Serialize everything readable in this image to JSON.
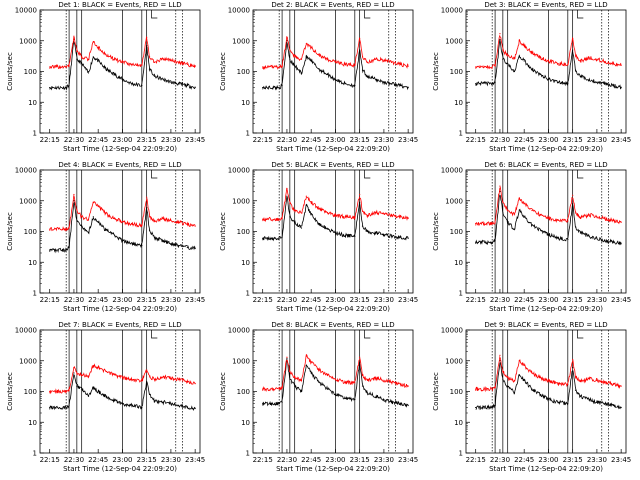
{
  "figure": {
    "ylabel": "Counts/sec",
    "xlabel": "Start Time (12-Sep-04 22:09:20)",
    "xticks": [
      "22:15",
      "22:30",
      "22:45",
      "23:00",
      "23:15",
      "23:30",
      "23:45"
    ],
    "yticks": [
      "1",
      "10",
      "100",
      "1000",
      "10000"
    ]
  },
  "colors": {
    "events": "#000000",
    "lld": "#ff0000",
    "axes": "#000000",
    "background": "#ffffff"
  },
  "chart_data": [
    {
      "type": "line",
      "title": "Det 1: BLACK = Events, RED = LLD",
      "xlabel": "Start Time (12-Sep-04 22:09:20)",
      "ylabel": "Counts/sec",
      "x": [
        22.25,
        22.42,
        22.45,
        22.5,
        22.53,
        22.58,
        22.65,
        22.7,
        22.75,
        22.83,
        22.92,
        23.0,
        23.1,
        23.2,
        23.25,
        23.28,
        23.33,
        23.42,
        23.5,
        23.58,
        23.67,
        23.75
      ],
      "series": [
        {
          "name": "BLACK = Events",
          "values": [
            30,
            30,
            35,
            1100,
            250,
            180,
            90,
            300,
            220,
            120,
            80,
            55,
            40,
            35,
            700,
            120,
            70,
            55,
            45,
            40,
            35,
            30
          ]
        },
        {
          "name": "RED = LLD",
          "values": [
            140,
            140,
            150,
            1400,
            450,
            300,
            250,
            900,
            600,
            350,
            250,
            200,
            170,
            160,
            1300,
            300,
            200,
            260,
            230,
            200,
            170,
            150
          ]
        }
      ],
      "xticks": [
        "22:15",
        "22:30",
        "22:45",
        "23:00",
        "23:15",
        "23:30",
        "23:45"
      ],
      "ylim": [
        1,
        10000
      ],
      "yscale": "log",
      "grid": false
    },
    {
      "type": "line",
      "title": "Det 2: BLACK = Events, RED = LLD",
      "xlabel": "Start Time (12-Sep-04 22:09:20)",
      "ylabel": "Counts/sec",
      "x": [
        22.25,
        22.42,
        22.45,
        22.5,
        22.53,
        22.58,
        22.65,
        22.7,
        22.75,
        22.83,
        22.92,
        23.0,
        23.1,
        23.2,
        23.25,
        23.28,
        23.33,
        23.42,
        23.5,
        23.58,
        23.67,
        23.75
      ],
      "series": [
        {
          "name": "BLACK = Events",
          "values": [
            30,
            30,
            35,
            1000,
            240,
            150,
            90,
            300,
            220,
            120,
            80,
            55,
            40,
            35,
            500,
            110,
            70,
            55,
            45,
            40,
            35,
            30
          ]
        },
        {
          "name": "RED = LLD",
          "values": [
            140,
            140,
            150,
            1300,
            500,
            300,
            250,
            800,
            600,
            350,
            250,
            200,
            170,
            160,
            1200,
            300,
            200,
            260,
            230,
            200,
            170,
            150
          ]
        }
      ],
      "xticks": [
        "22:15",
        "22:30",
        "22:45",
        "23:00",
        "23:15",
        "23:30",
        "23:45"
      ],
      "ylim": [
        1,
        10000
      ],
      "yscale": "log",
      "grid": false
    },
    {
      "type": "line",
      "title": "Det 3: BLACK = Events, RED = LLD",
      "xlabel": "Start Time (12-Sep-04 22:09:20)",
      "ylabel": "Counts/sec",
      "x": [
        22.25,
        22.42,
        22.45,
        22.5,
        22.53,
        22.58,
        22.65,
        22.7,
        22.75,
        22.83,
        22.92,
        23.0,
        23.1,
        23.2,
        23.25,
        23.28,
        23.33,
        23.42,
        23.5,
        23.58,
        23.67,
        23.75
      ],
      "series": [
        {
          "name": "BLACK = Events",
          "values": [
            40,
            40,
            45,
            1100,
            250,
            180,
            100,
            320,
            220,
            120,
            80,
            55,
            45,
            40,
            500,
            110,
            70,
            55,
            45,
            40,
            35,
            30
          ]
        },
        {
          "name": "RED = LLD",
          "values": [
            140,
            140,
            150,
            1700,
            500,
            320,
            260,
            1000,
            700,
            400,
            280,
            220,
            180,
            170,
            1200,
            320,
            220,
            280,
            250,
            210,
            180,
            160
          ]
        }
      ],
      "xticks": [
        "22:15",
        "22:30",
        "22:45",
        "23:00",
        "23:15",
        "23:30",
        "23:45"
      ],
      "ylim": [
        1,
        10000
      ],
      "yscale": "log",
      "grid": false
    },
    {
      "type": "line",
      "title": "Det 4: BLACK = Events, RED = LLD",
      "xlabel": "Start Time (12-Sep-04 22:09:20)",
      "ylabel": "Counts/sec",
      "x": [
        22.25,
        22.42,
        22.45,
        22.5,
        22.53,
        22.58,
        22.65,
        22.7,
        22.75,
        22.83,
        22.92,
        23.0,
        23.1,
        23.2,
        23.25,
        23.28,
        23.33,
        23.42,
        23.5,
        23.58,
        23.67,
        23.75
      ],
      "series": [
        {
          "name": "BLACK = Events",
          "values": [
            25,
            25,
            30,
            1000,
            220,
            150,
            90,
            300,
            200,
            110,
            75,
            50,
            40,
            35,
            600,
            110,
            65,
            50,
            40,
            35,
            30,
            28
          ]
        },
        {
          "name": "RED = LLD",
          "values": [
            120,
            120,
            130,
            1600,
            500,
            300,
            250,
            900,
            650,
            380,
            260,
            210,
            170,
            160,
            1300,
            300,
            210,
            260,
            230,
            200,
            170,
            150
          ]
        }
      ],
      "xticks": [
        "22:15",
        "22:30",
        "22:45",
        "23:00",
        "23:15",
        "23:30",
        "23:45"
      ],
      "ylim": [
        1,
        10000
      ],
      "yscale": "log",
      "grid": false
    },
    {
      "type": "line",
      "title": "Det 5: BLACK = Events, RED = LLD",
      "xlabel": "Start Time (12-Sep-04 22:09:20)",
      "ylabel": "Counts/sec",
      "x": [
        22.25,
        22.42,
        22.45,
        22.5,
        22.53,
        22.58,
        22.65,
        22.7,
        22.75,
        22.83,
        22.92,
        23.0,
        23.1,
        23.2,
        23.25,
        23.28,
        23.33,
        23.42,
        23.5,
        23.58,
        23.67,
        23.75
      ],
      "series": [
        {
          "name": "BLACK = Events",
          "values": [
            60,
            60,
            65,
            1400,
            300,
            200,
            130,
            700,
            350,
            180,
            120,
            90,
            75,
            70,
            900,
            150,
            100,
            90,
            80,
            70,
            65,
            60
          ]
        },
        {
          "name": "RED = LLD",
          "values": [
            250,
            250,
            260,
            2500,
            800,
            500,
            400,
            1400,
            900,
            550,
            400,
            330,
            300,
            290,
            1600,
            450,
            330,
            420,
            380,
            330,
            300,
            270
          ]
        }
      ],
      "xticks": [
        "22:15",
        "22:30",
        "22:45",
        "23:00",
        "23:15",
        "23:30",
        "23:45"
      ],
      "ylim": [
        1,
        10000
      ],
      "yscale": "log",
      "grid": false
    },
    {
      "type": "line",
      "title": "Det 6: BLACK = Events, RED = LLD",
      "xlabel": "Start Time (12-Sep-04 22:09:20)",
      "ylabel": "Counts/sec",
      "x": [
        22.25,
        22.42,
        22.45,
        22.5,
        22.53,
        22.58,
        22.65,
        22.7,
        22.75,
        22.83,
        22.92,
        23.0,
        23.1,
        23.2,
        23.25,
        23.28,
        23.33,
        23.42,
        23.5,
        23.58,
        23.67,
        23.75
      ],
      "series": [
        {
          "name": "BLACK = Events",
          "values": [
            45,
            45,
            50,
            2000,
            400,
            200,
            120,
            500,
            300,
            160,
            110,
            80,
            60,
            55,
            800,
            140,
            90,
            70,
            60,
            50,
            45,
            40
          ]
        },
        {
          "name": "RED = LLD",
          "values": [
            180,
            180,
            190,
            3000,
            900,
            500,
            350,
            1200,
            800,
            480,
            340,
            270,
            230,
            220,
            1500,
            400,
            280,
            350,
            300,
            260,
            230,
            200
          ]
        }
      ],
      "xticks": [
        "22:15",
        "22:30",
        "22:45",
        "23:00",
        "23:15",
        "23:30",
        "23:45"
      ],
      "ylim": [
        1,
        10000
      ],
      "yscale": "log",
      "grid": false
    },
    {
      "type": "line",
      "title": "Det 7: BLACK = Events, RED = LLD",
      "xlabel": "Start Time (12-Sep-04 22:09:20)",
      "ylabel": "Counts/sec",
      "x": [
        22.25,
        22.42,
        22.45,
        22.5,
        22.53,
        22.58,
        22.65,
        22.7,
        22.75,
        22.83,
        22.92,
        23.0,
        23.1,
        23.2,
        23.25,
        23.28,
        23.33,
        23.42,
        23.5,
        23.58,
        23.67,
        23.75
      ],
      "series": [
        {
          "name": "BLACK = Events",
          "values": [
            30,
            30,
            35,
            400,
            150,
            120,
            70,
            140,
            100,
            70,
            50,
            40,
            35,
            30,
            200,
            80,
            50,
            45,
            40,
            35,
            30,
            28
          ]
        },
        {
          "name": "RED = LLD",
          "values": [
            100,
            100,
            110,
            600,
            400,
            350,
            320,
            700,
            600,
            450,
            350,
            280,
            240,
            220,
            500,
            300,
            250,
            300,
            270,
            240,
            210,
            180
          ]
        }
      ],
      "xticks": [
        "22:15",
        "22:30",
        "22:45",
        "23:00",
        "23:15",
        "23:30",
        "23:45"
      ],
      "ylim": [
        1,
        10000
      ],
      "yscale": "log",
      "grid": false
    },
    {
      "type": "line",
      "title": "Det 8: BLACK = Events, RED = LLD",
      "xlabel": "Start Time (12-Sep-04 22:09:20)",
      "ylabel": "Counts/sec",
      "x": [
        22.25,
        22.42,
        22.45,
        22.5,
        22.53,
        22.58,
        22.65,
        22.7,
        22.75,
        22.83,
        22.92,
        23.0,
        23.1,
        23.2,
        23.25,
        23.28,
        23.33,
        23.42,
        23.5,
        23.58,
        23.67,
        23.75
      ],
      "series": [
        {
          "name": "BLACK = Events",
          "values": [
            40,
            40,
            45,
            1200,
            250,
            150,
            100,
            700,
            400,
            200,
            120,
            80,
            60,
            55,
            900,
            150,
            90,
            70,
            55,
            45,
            40,
            35
          ]
        },
        {
          "name": "RED = LLD",
          "values": [
            120,
            120,
            130,
            1300,
            450,
            280,
            230,
            1400,
            900,
            500,
            330,
            250,
            200,
            190,
            1300,
            330,
            230,
            270,
            230,
            200,
            170,
            150
          ]
        }
      ],
      "xticks": [
        "22:15",
        "22:30",
        "22:45",
        "23:00",
        "23:15",
        "23:30",
        "23:45"
      ],
      "ylim": [
        1,
        10000
      ],
      "yscale": "log",
      "grid": false
    },
    {
      "type": "line",
      "title": "Det 9: BLACK = Events, RED = LLD",
      "xlabel": "Start Time (12-Sep-04 22:09:20)",
      "ylabel": "Counts/sec",
      "x": [
        22.25,
        22.42,
        22.45,
        22.5,
        22.53,
        22.58,
        22.65,
        22.7,
        22.75,
        22.83,
        22.92,
        23.0,
        23.1,
        23.2,
        23.25,
        23.28,
        23.33,
        23.42,
        23.5,
        23.58,
        23.67,
        23.75
      ],
      "series": [
        {
          "name": "BLACK = Events",
          "values": [
            30,
            30,
            35,
            1000,
            240,
            150,
            90,
            350,
            230,
            120,
            80,
            55,
            45,
            40,
            600,
            110,
            70,
            55,
            45,
            40,
            35,
            30
          ]
        },
        {
          "name": "RED = LLD",
          "values": [
            120,
            120,
            130,
            1500,
            450,
            280,
            220,
            1000,
            700,
            400,
            280,
            220,
            180,
            170,
            1100,
            300,
            210,
            260,
            230,
            200,
            170,
            150
          ]
        }
      ],
      "xticks": [
        "22:15",
        "22:30",
        "22:45",
        "23:00",
        "23:15",
        "23:30",
        "23:45"
      ],
      "ylim": [
        1,
        10000
      ],
      "yscale": "log",
      "grid": false
    }
  ]
}
